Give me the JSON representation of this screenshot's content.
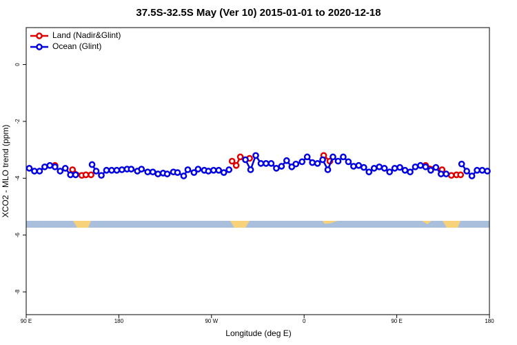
{
  "chart_data": {
    "type": "line",
    "title": "37.5S-32.5S May (Ver 10)   2015-01-01 to 2020-12-18",
    "xlabel": "Longitude (deg E)",
    "ylabel": "XCO2 - MLO trend (ppm)",
    "xlim": [
      90,
      540
    ],
    "ylim": [
      -8.8,
      1.3
    ],
    "xticks": [
      {
        "value": 90,
        "label": "90 E"
      },
      180,
      {
        "value": 270,
        "label": "90 W"
      },
      {
        "value": 360,
        "label": "0"
      },
      {
        "value": 450,
        "label": "90 E"
      },
      {
        "value": 540,
        "label": "180"
      }
    ],
    "yticks": [
      0,
      -2,
      -4,
      -6,
      -8
    ],
    "legend": "top-left",
    "series": [
      {
        "name": "Land (Nadir&Glint)",
        "color": "#e00000",
        "x": [
          118,
          126,
          135,
          144,
          148,
          153,
          200,
          290,
          294,
          298,
          307,
          340,
          379,
          385,
          430,
          478,
          494,
          503,
          508,
          512
        ],
        "values": [
          -3.55,
          null,
          -3.7,
          -3.9,
          -3.88,
          -3.88,
          null,
          -3.4,
          -3.55,
          -3.25,
          -3.3,
          null,
          -3.2,
          -3.4,
          null,
          -3.55,
          -3.7,
          -3.9,
          -3.88,
          -3.88
        ]
      },
      {
        "name": "Ocean (Glint)",
        "color": "#0000e0",
        "x": [
          93,
          98,
          103,
          108,
          113,
          118,
          123,
          128,
          133,
          138,
          146,
          154,
          158,
          163,
          168,
          173,
          178,
          183,
          188,
          192,
          198,
          202,
          208,
          213,
          218,
          223,
          227,
          233,
          237,
          243,
          247,
          253,
          257,
          263,
          267,
          272,
          277,
          282,
          287,
          295,
          303,
          308,
          313,
          318,
          323,
          328,
          333,
          338,
          343,
          348,
          352,
          358,
          363,
          368,
          373,
          378,
          383,
          388,
          393,
          398,
          403,
          408,
          413,
          418,
          423,
          428,
          433,
          438,
          443,
          448,
          453,
          458,
          463,
          468,
          473,
          478,
          483,
          488,
          493,
          498,
          505,
          513,
          518,
          523,
          528,
          533,
          538
        ],
        "values": [
          -3.65,
          -3.75,
          -3.75,
          -3.6,
          -3.55,
          -3.6,
          -3.75,
          -3.65,
          -3.88,
          -3.88,
          null,
          -3.52,
          -3.75,
          -3.9,
          -3.72,
          -3.72,
          -3.72,
          -3.7,
          -3.68,
          -3.68,
          -3.75,
          -3.68,
          -3.78,
          -3.78,
          -3.85,
          -3.82,
          -3.85,
          -3.78,
          -3.8,
          -3.92,
          -3.7,
          -3.8,
          -3.68,
          -3.72,
          -3.75,
          -3.72,
          -3.72,
          -3.8,
          -3.7,
          null,
          -3.35,
          -3.7,
          -3.2,
          -3.48,
          -3.48,
          -3.48,
          -3.65,
          -3.58,
          -3.38,
          -3.6,
          -3.5,
          -3.42,
          -3.25,
          -3.45,
          -3.48,
          -3.35,
          -3.7,
          -3.25,
          -3.4,
          -3.25,
          -3.42,
          -3.58,
          -3.55,
          -3.62,
          -3.78,
          -3.65,
          -3.6,
          -3.65,
          -3.78,
          -3.65,
          -3.62,
          -3.72,
          -3.78,
          -3.6,
          -3.55,
          -3.6,
          -3.72,
          -3.62,
          -3.85,
          -3.85,
          null,
          -3.5,
          -3.75,
          -3.92,
          -3.72,
          -3.72,
          -3.75
        ]
      }
    ]
  }
}
